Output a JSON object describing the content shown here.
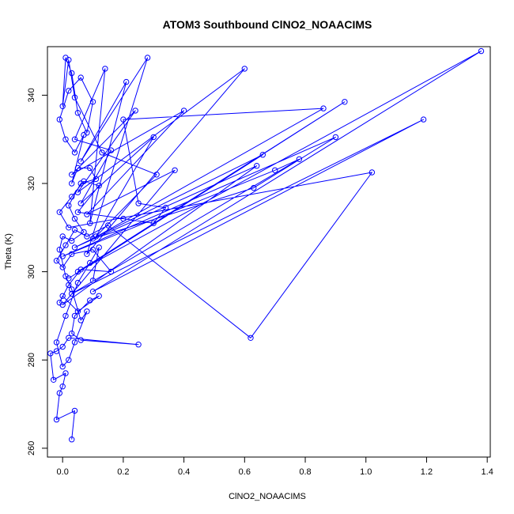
{
  "chart_data": {
    "type": "scatter",
    "title": "ATOM3 Southbound ClNO2_NOAACIMS",
    "xlabel": "ClNO2_NOAACIMS",
    "ylabel": "Theta (K)",
    "xlim": [
      -0.05,
      1.41
    ],
    "ylim": [
      258,
      351
    ],
    "xticks": [
      0.0,
      0.2,
      0.4,
      0.6,
      0.8,
      1.0,
      1.2,
      1.4
    ],
    "xtick_labels": [
      "0.0",
      "0.2",
      "0.4",
      "0.6",
      "0.8",
      "1.0",
      "1.2",
      "1.4"
    ],
    "yticks": [
      260,
      280,
      300,
      320,
      340
    ],
    "ytick_labels": [
      "260",
      "280",
      "300",
      "320",
      "340"
    ],
    "grid": false,
    "legend": "none",
    "connected": true,
    "marker": "open-circle",
    "series": [
      {
        "color": "#0000ff",
        "points": [
          [
            0.03,
            262.0
          ],
          [
            0.04,
            268.5
          ],
          [
            -0.02,
            266.5
          ],
          [
            -0.01,
            272.5
          ],
          [
            0.0,
            274.0
          ],
          [
            0.01,
            277.0
          ],
          [
            -0.03,
            275.5
          ],
          [
            -0.04,
            281.5
          ],
          [
            -0.02,
            282.0
          ],
          [
            0.0,
            283.0
          ],
          [
            0.02,
            285.0
          ],
          [
            0.25,
            283.5
          ],
          [
            0.06,
            284.5
          ],
          [
            0.03,
            286.0
          ],
          [
            0.04,
            290.0
          ],
          [
            0.09,
            293.5
          ],
          [
            0.12,
            294.5
          ],
          [
            0.05,
            291.0
          ],
          [
            0.0,
            294.5
          ],
          [
            -0.01,
            293.0
          ],
          [
            0.02,
            297.0
          ],
          [
            0.06,
            300.5
          ],
          [
            0.16,
            300.0
          ],
          [
            0.1,
            305.0
          ],
          [
            0.03,
            304.0
          ],
          [
            0.0,
            301.0
          ],
          [
            -0.02,
            302.5
          ],
          [
            0.01,
            306.0
          ],
          [
            0.04,
            309.5
          ],
          [
            0.08,
            308.0
          ],
          [
            0.15,
            310.5
          ],
          [
            0.62,
            285.0
          ],
          [
            1.02,
            322.5
          ],
          [
            0.02,
            310.0
          ],
          [
            -0.01,
            313.5
          ],
          [
            0.03,
            317.0
          ],
          [
            0.07,
            320.5
          ],
          [
            0.12,
            319.5
          ],
          [
            0.05,
            313.5
          ],
          [
            0.2,
            312.0
          ],
          [
            0.3,
            311.0
          ],
          [
            0.34,
            314.5
          ],
          [
            0.25,
            315.5
          ],
          [
            0.2,
            334.5
          ],
          [
            0.86,
            337.0
          ],
          [
            0.1,
            307.5
          ],
          [
            0.63,
            319.0
          ],
          [
            0.9,
            330.5
          ],
          [
            0.0,
            303.5
          ],
          [
            0.7,
            323.0
          ],
          [
            0.78,
            325.5
          ],
          [
            0.03,
            295.0
          ],
          [
            1.19,
            334.5
          ],
          [
            0.1,
            295.5
          ],
          [
            1.38,
            350.0
          ],
          [
            0.05,
            300.0
          ],
          [
            0.93,
            338.5
          ],
          [
            0.02,
            298.5
          ],
          [
            0.66,
            326.5
          ],
          [
            0.04,
            305.5
          ],
          [
            0.64,
            324.0
          ],
          [
            0.0,
            292.5
          ],
          [
            0.37,
            323.0
          ],
          [
            0.08,
            313.0
          ],
          [
            0.4,
            336.5
          ],
          [
            0.03,
            322.0
          ],
          [
            0.24,
            336.5
          ],
          [
            0.05,
            318.0
          ],
          [
            0.6,
            346.0
          ],
          [
            0.08,
            304.0
          ],
          [
            0.28,
            348.5
          ],
          [
            0.06,
            325.0
          ],
          [
            0.21,
            343.0
          ],
          [
            0.09,
            311.0
          ],
          [
            0.14,
            346.0
          ],
          [
            0.04,
            330.0
          ],
          [
            0.16,
            327.5
          ],
          [
            0.06,
            315.5
          ],
          [
            0.3,
            330.5
          ],
          [
            0.11,
            308.0
          ],
          [
            0.31,
            322.0
          ],
          [
            0.13,
            327.0
          ],
          [
            0.04,
            339.5
          ],
          [
            0.02,
            348.0
          ],
          [
            0.0,
            337.5
          ],
          [
            0.01,
            348.5
          ],
          [
            0.03,
            345.0
          ],
          [
            0.05,
            336.0
          ],
          [
            0.08,
            331.5
          ],
          [
            0.1,
            338.5
          ],
          [
            0.06,
            344.0
          ],
          [
            0.02,
            341.0
          ],
          [
            -0.01,
            334.5
          ],
          [
            0.01,
            330.0
          ],
          [
            0.04,
            327.0
          ],
          [
            0.07,
            331.0
          ],
          [
            0.03,
            320.0
          ],
          [
            0.05,
            323.5
          ],
          [
            0.09,
            323.5
          ],
          [
            0.11,
            321.0
          ],
          [
            0.06,
            320.0
          ],
          [
            0.02,
            315.0
          ],
          [
            0.04,
            312.0
          ],
          [
            0.07,
            309.0
          ],
          [
            0.03,
            307.0
          ],
          [
            0.0,
            308.0
          ],
          [
            -0.01,
            305.0
          ],
          [
            0.01,
            299.0
          ],
          [
            0.03,
            296.0
          ],
          [
            0.06,
            289.0
          ],
          [
            0.08,
            291.0
          ],
          [
            0.04,
            284.0
          ],
          [
            0.02,
            280.0
          ],
          [
            0.0,
            278.5
          ],
          [
            -0.02,
            284.0
          ],
          [
            0.01,
            290.0
          ],
          [
            0.05,
            297.5
          ],
          [
            0.09,
            302.0
          ],
          [
            0.12,
            305.5
          ],
          [
            0.1,
            298.0
          ]
        ]
      }
    ]
  }
}
